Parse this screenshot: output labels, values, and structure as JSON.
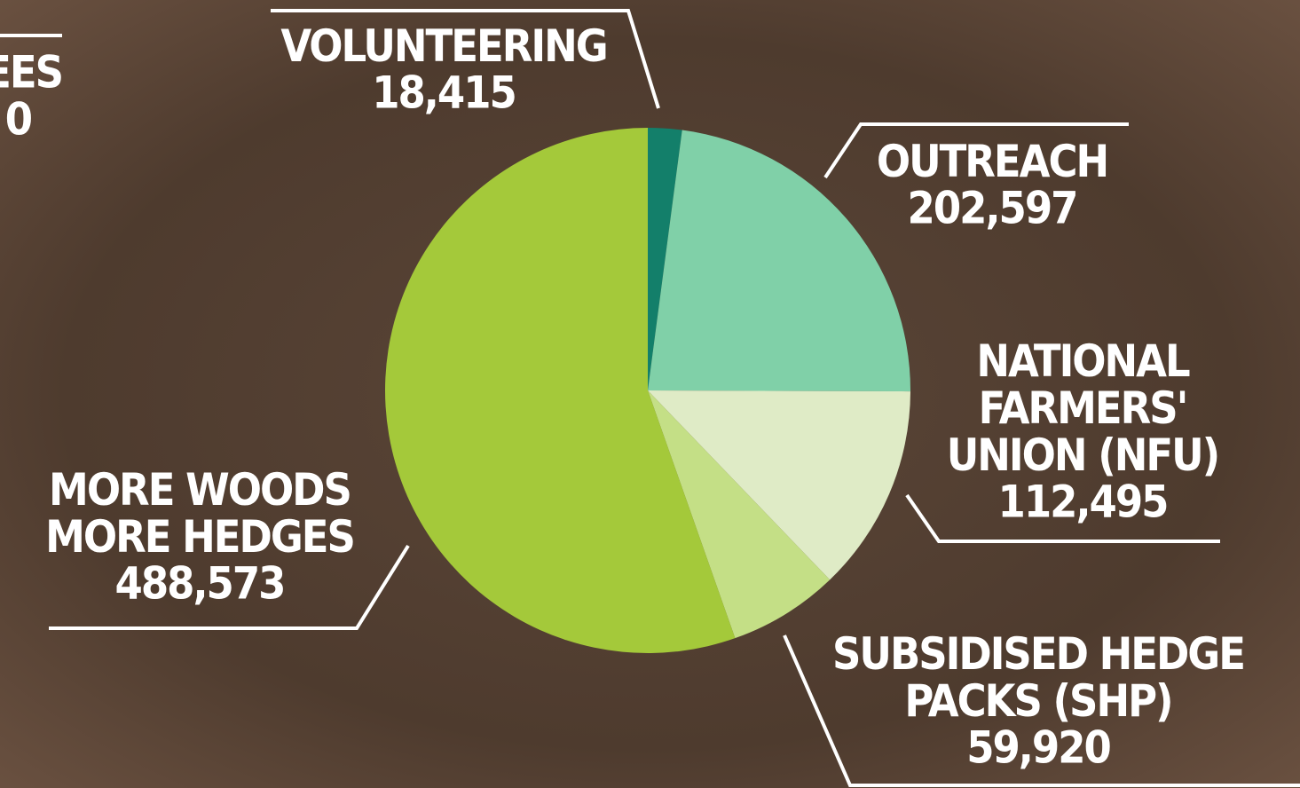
{
  "chart_data": {
    "type": "pie",
    "categories": [
      "VOLUNTEERING",
      "OUTREACH",
      "NATIONAL\nFARMERS'\nUNION (NFU)",
      "SUBSIDISED HEDGE\nPACKS (SHP)",
      "MORE WOODS\nMORE HEDGES"
    ],
    "values": [
      18415,
      202597,
      112495,
      59920,
      488573
    ],
    "value_labels": [
      "18,415",
      "202,597",
      "112,495",
      "59,920",
      "488,573"
    ],
    "colors": [
      "#137f6a",
      "#80d0a8",
      "#dfebc6",
      "#c4df86",
      "#a4c93a"
    ],
    "fragments": [
      "EES",
      "0"
    ]
  }
}
